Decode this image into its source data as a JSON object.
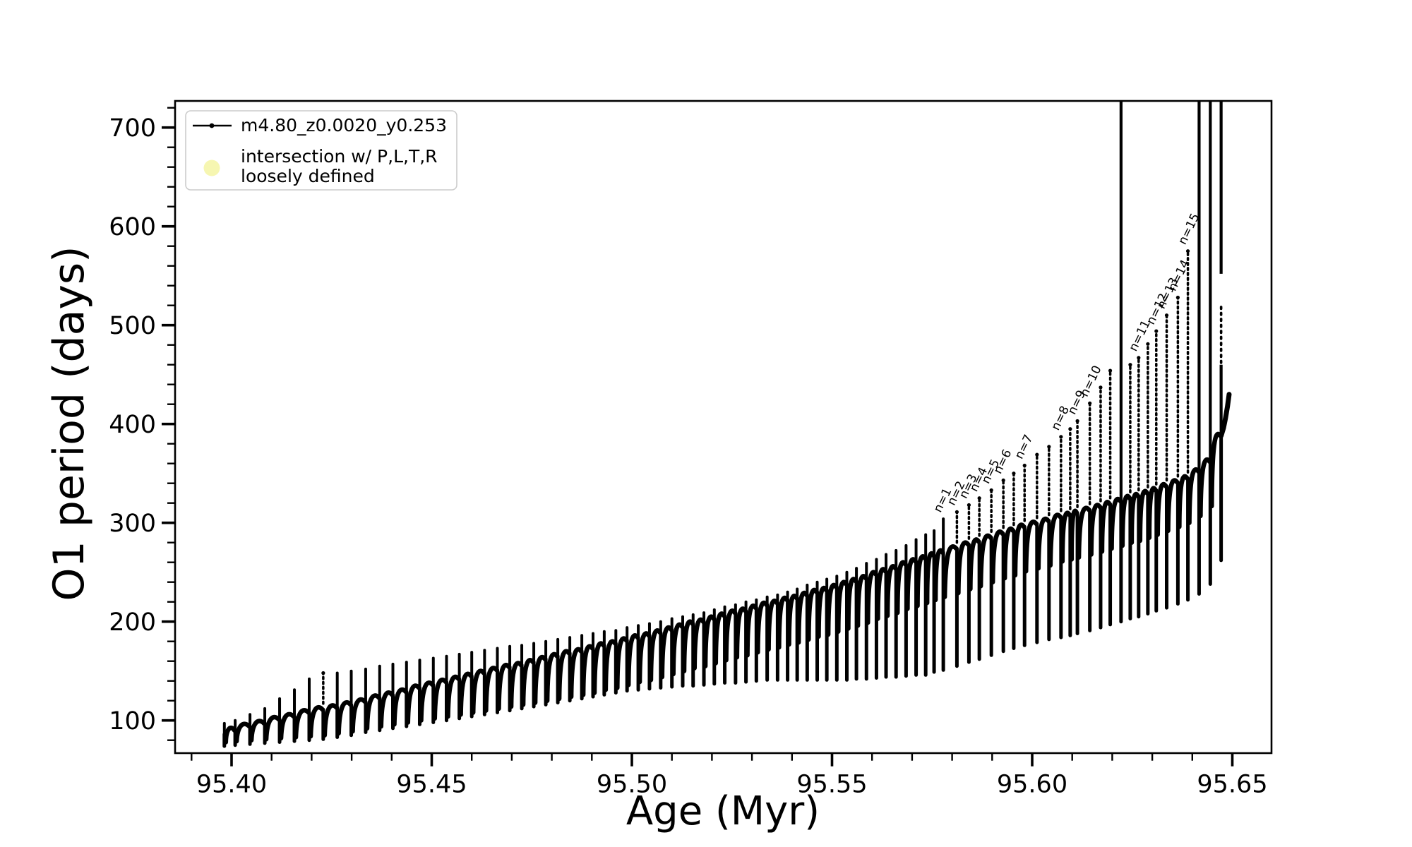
{
  "figure": {
    "background": "#ffffff"
  },
  "colors": {
    "ink": "#000000",
    "legend_border": "#cccccc",
    "intersection_marker": "#f5f5ad"
  },
  "chart_data": {
    "type": "line",
    "title": "",
    "xlabel": "Age (Myr)",
    "ylabel": "O1 period (days)",
    "xlim": [
      95.386,
      95.66
    ],
    "ylim": [
      67,
      727
    ],
    "grid": false,
    "x_ticks": {
      "major": [
        95.4,
        95.45,
        95.5,
        95.55,
        95.6,
        95.65
      ],
      "labels": [
        "95.40",
        "95.45",
        "95.50",
        "95.55",
        "95.60",
        "95.65"
      ],
      "minor_step": 0.01,
      "minor_range": [
        95.39,
        95.65
      ]
    },
    "y_ticks": {
      "major": [
        100,
        200,
        300,
        400,
        500,
        600,
        700
      ],
      "labels": [
        "100",
        "200",
        "300",
        "400",
        "500",
        "600",
        "700"
      ],
      "minor_step": 20,
      "minor_range": [
        80,
        720
      ]
    },
    "legend": {
      "location": "upper left",
      "entries": [
        {
          "marker": "line-dot",
          "label": "m4.80_z0.0020_y0.253"
        },
        {
          "marker": "circle",
          "color": "#f5f5ad",
          "lines": [
            "intersection w/ P,L,T,R",
            "loosely defined"
          ]
        }
      ]
    },
    "series": [
      {
        "name": "m4.80_z0.0020_y0.253",
        "style": "dotted-pulse-track",
        "pulses_format": [
          "age_Myr",
          "base_period",
          "spike_top",
          "dip_bottom"
        ],
        "pulses": [
          [
            95.3982,
            86,
            97,
            74
          ],
          [
            95.4009,
            90,
            100,
            75
          ],
          [
            95.4046,
            94,
            106,
            76
          ],
          [
            95.4083,
            97,
            112,
            77
          ],
          [
            95.412,
            101,
            122,
            78
          ],
          [
            95.4157,
            104,
            131,
            79
          ],
          [
            95.4194,
            108,
            142,
            80
          ],
          [
            95.4229,
            111,
            148,
            81
          ],
          [
            95.4264,
            113,
            148,
            83
          ],
          [
            95.4299,
            116,
            150,
            85
          ],
          [
            95.4335,
            119,
            152,
            88
          ],
          [
            95.437,
            123,
            155,
            90
          ],
          [
            95.4403,
            126,
            157,
            92
          ],
          [
            95.4437,
            129,
            159,
            94
          ],
          [
            95.447,
            133,
            161,
            96
          ],
          [
            95.4504,
            136,
            163,
            98
          ],
          [
            95.4537,
            139,
            165,
            100
          ],
          [
            95.4569,
            142,
            167,
            102
          ],
          [
            95.46,
            145,
            169,
            104
          ],
          [
            95.4632,
            148,
            171,
            106
          ],
          [
            95.4664,
            151,
            173,
            108
          ],
          [
            95.4695,
            154,
            175,
            110
          ],
          [
            95.4725,
            156,
            176,
            112
          ],
          [
            95.4755,
            159,
            178,
            114
          ],
          [
            95.4785,
            162,
            180,
            116
          ],
          [
            95.4815,
            165,
            182,
            118
          ],
          [
            95.4845,
            168,
            184,
            120
          ],
          [
            95.4875,
            170,
            186,
            122
          ],
          [
            95.4903,
            173,
            188,
            124
          ],
          [
            95.4931,
            176,
            190,
            126
          ],
          [
            95.496,
            178,
            191,
            128
          ],
          [
            95.4988,
            181,
            194,
            130
          ],
          [
            95.5016,
            184,
            196,
            131
          ],
          [
            95.5044,
            186,
            198,
            132
          ],
          [
            95.5072,
            189,
            200,
            133
          ],
          [
            95.51,
            192,
            203,
            134
          ],
          [
            95.5127,
            195,
            205,
            135
          ],
          [
            95.5153,
            198,
            207,
            135
          ],
          [
            95.518,
            200,
            209,
            136
          ],
          [
            95.5206,
            203,
            212,
            137
          ],
          [
            95.5232,
            206,
            215,
            138
          ],
          [
            95.5259,
            209,
            217,
            138
          ],
          [
            95.5285,
            211,
            220,
            139
          ],
          [
            95.5311,
            214,
            222,
            140
          ],
          [
            95.5338,
            217,
            225,
            141
          ],
          [
            95.5364,
            219,
            227,
            141
          ],
          [
            95.5389,
            222,
            230,
            141
          ],
          [
            95.5413,
            224,
            233,
            141
          ],
          [
            95.5438,
            227,
            237,
            141
          ],
          [
            95.5463,
            230,
            240,
            141
          ],
          [
            95.5487,
            232,
            243,
            141
          ],
          [
            95.5512,
            235,
            246,
            141
          ],
          [
            95.5537,
            238,
            250,
            141
          ],
          [
            95.5561,
            241,
            254,
            142
          ],
          [
            95.5586,
            244,
            259,
            142
          ],
          [
            95.5611,
            248,
            263,
            143
          ],
          [
            95.5635,
            251,
            268,
            144
          ],
          [
            95.566,
            254,
            272,
            144
          ],
          [
            95.5685,
            258,
            277,
            145
          ],
          [
            95.571,
            261,
            283,
            146
          ],
          [
            95.5734,
            264,
            288,
            146
          ],
          [
            95.5755,
            267,
            292,
            149
          ],
          [
            95.5778,
            270,
            304,
            151
          ],
          [
            95.5812,
            274,
            311,
            155
          ],
          [
            95.5842,
            278,
            318,
            159
          ],
          [
            95.5868,
            281,
            325,
            162
          ],
          [
            95.5898,
            285,
            333,
            166
          ],
          [
            95.5928,
            289,
            343,
            170
          ],
          [
            95.5954,
            292,
            350,
            173
          ],
          [
            95.5981,
            296,
            358,
            176
          ],
          [
            95.6012,
            299,
            369,
            179
          ],
          [
            95.6042,
            302,
            377,
            182
          ],
          [
            95.6072,
            306,
            387,
            184
          ],
          [
            95.6095,
            308,
            395,
            186
          ],
          [
            95.6113,
            310,
            403,
            188
          ],
          [
            95.6144,
            313,
            421,
            191
          ],
          [
            95.6171,
            316,
            437,
            194
          ],
          [
            95.6195,
            319,
            454,
            197
          ],
          [
            95.6222,
            322,
            760,
            200
          ],
          [
            95.6245,
            325,
            460,
            203
          ],
          [
            95.6266,
            327,
            467,
            205
          ],
          [
            95.6289,
            330,
            481,
            208
          ],
          [
            95.631,
            333,
            494,
            211
          ],
          [
            95.6336,
            337,
            510,
            214
          ],
          [
            95.6364,
            341,
            528,
            218
          ],
          [
            95.6389,
            345,
            575,
            222
          ],
          [
            95.6417,
            352,
            760,
            228
          ],
          [
            95.6445,
            362,
            760,
            238
          ],
          [
            95.6472,
            388,
            760,
            262
          ]
        ],
        "tail": [
          [
            95.6472,
            388
          ],
          [
            95.6478,
            396
          ],
          [
            95.6483,
            406
          ],
          [
            95.6488,
            418
          ],
          [
            95.6492,
            430
          ]
        ]
      }
    ],
    "annotations": [
      {
        "text": "n=1",
        "age": 95.5778,
        "period": 304
      },
      {
        "text": "n=2",
        "age": 95.5812,
        "period": 311
      },
      {
        "text": "n=3",
        "age": 95.5842,
        "period": 318
      },
      {
        "text": "n=4",
        "age": 95.5868,
        "period": 325
      },
      {
        "text": "n=5",
        "age": 95.5898,
        "period": 333
      },
      {
        "text": "n=6",
        "age": 95.5928,
        "period": 343
      },
      {
        "text": "n=7",
        "age": 95.5981,
        "period": 358
      },
      {
        "text": "n=8",
        "age": 95.6072,
        "period": 387
      },
      {
        "text": "n=9",
        "age": 95.6113,
        "period": 403
      },
      {
        "text": "n=10",
        "age": 95.6144,
        "period": 421
      },
      {
        "text": "n=11",
        "age": 95.6266,
        "period": 467
      },
      {
        "text": "n=12",
        "age": 95.631,
        "period": 494
      },
      {
        "text": "n=13",
        "age": 95.6336,
        "period": 510
      },
      {
        "text": "n=14",
        "age": 95.6364,
        "period": 528
      },
      {
        "text": "n=15",
        "age": 95.6389,
        "period": 575
      }
    ],
    "annotation_rotation_deg": 60
  }
}
